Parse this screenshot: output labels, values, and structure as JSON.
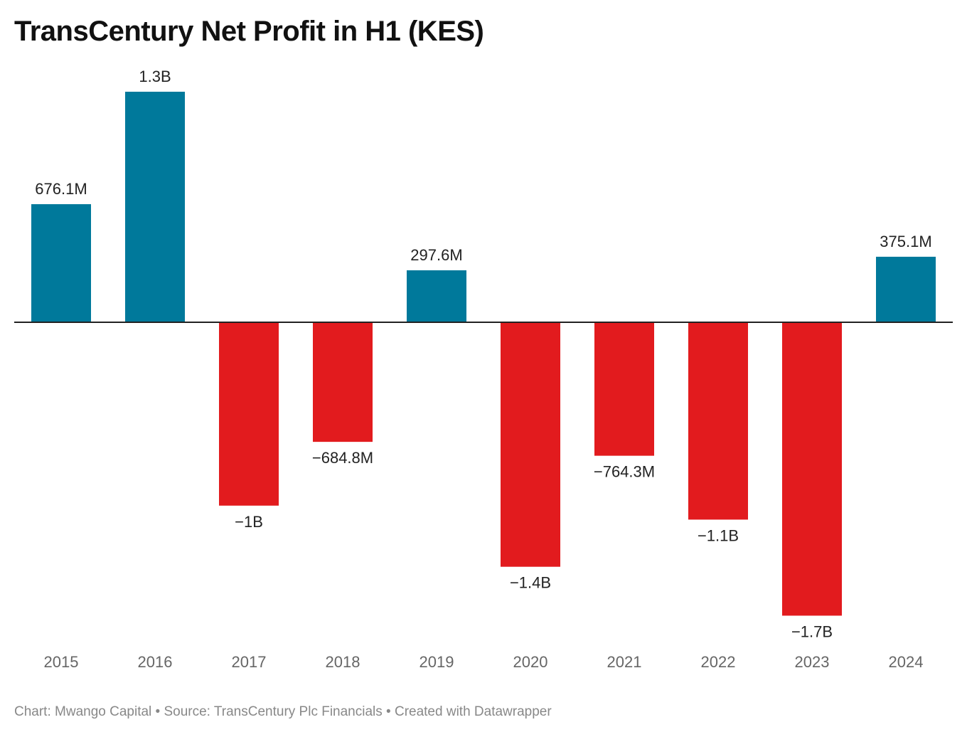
{
  "title": "TransCentury Net Profit in H1 (KES)",
  "footer": "Chart: Mwango Capital • Source: TransCentury Plc Financials • Created with Datawrapper",
  "colors": {
    "positive": "#00799b",
    "negative": "#e21b1e",
    "baseline": "#222222",
    "axis_text": "#666666",
    "label_text": "#222222"
  },
  "chart_data": {
    "type": "bar",
    "title": "TransCentury Net Profit in H1 (KES)",
    "categories": [
      "2015",
      "2016",
      "2017",
      "2018",
      "2019",
      "2020",
      "2021",
      "2022",
      "2023",
      "2024"
    ],
    "values": [
      676.1,
      1320,
      -1050,
      -684.8,
      297.6,
      -1400,
      -764.3,
      -1130,
      -1680,
      375.1
    ],
    "value_units": "M KES",
    "data_labels": [
      "676.1M",
      "1.3B",
      "−1B",
      "−684.8M",
      "297.6M",
      "−1.4B",
      "−764.3M",
      "−1.1B",
      "−1.7B",
      "375.1M"
    ],
    "xlabel": "",
    "ylabel": "",
    "grid": false,
    "legend": "none"
  }
}
